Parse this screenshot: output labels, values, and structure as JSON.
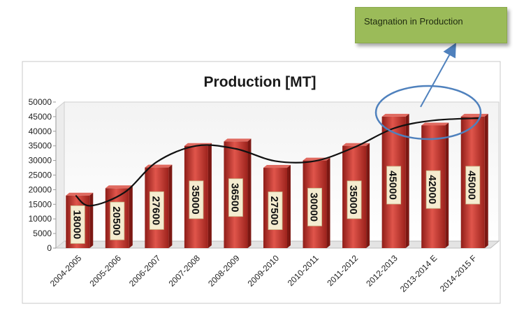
{
  "chart_data": {
    "type": "bar",
    "title": "Production [MT]",
    "xlabel": "",
    "ylabel": "",
    "categories": [
      "2004-2005",
      "2005-2006",
      "2006-2007",
      "2007-2008",
      "2008-2009",
      "2009-2010",
      "2010-2011",
      "2011-2012",
      "2012-2013",
      "2013-2014 E",
      "2014-2015 F"
    ],
    "values": [
      18000,
      20500,
      27600,
      35000,
      36500,
      27500,
      30000,
      35000,
      45000,
      42000,
      45000
    ],
    "data_labels": [
      "18000",
      "20500",
      "27600",
      "35000",
      "36500",
      "27500",
      "30000",
      "35000",
      "45000",
      "42000",
      "45000"
    ],
    "yticks": [
      "0",
      "5000",
      "10000",
      "15000",
      "20000",
      "25000",
      "30000",
      "35000",
      "40000",
      "45000",
      "50000"
    ],
    "ylim": [
      0,
      50000
    ],
    "trend_line": "smoothed trend",
    "bar_color": "#c0302a",
    "grid": false,
    "legend": "none"
  },
  "annotation": {
    "text": "Stagnation in Production",
    "box_color": "#9bbb59",
    "ellipse_color": "#4f81bd"
  }
}
